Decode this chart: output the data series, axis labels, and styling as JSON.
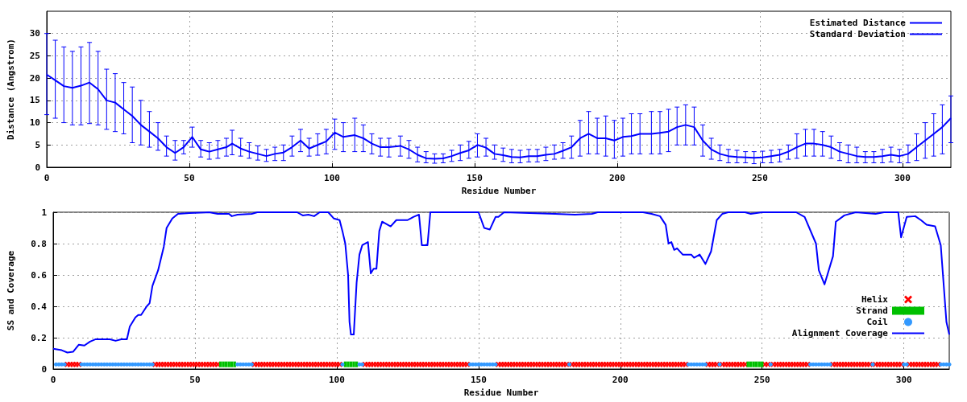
{
  "chart_data": [
    {
      "type": "line",
      "xlabel": "Residue Number",
      "ylabel": "Distance (Angstrom)",
      "xlim": [
        0,
        317
      ],
      "xticks": [
        0,
        50,
        100,
        150,
        200,
        250,
        300
      ],
      "ylim": [
        0,
        35
      ],
      "yticks": [
        0,
        5,
        10,
        15,
        20,
        25,
        30
      ],
      "grid": true,
      "legend": "top right",
      "annotations": [
        "Standard Deviation"
      ],
      "x": [
        0,
        3,
        6,
        9,
        12,
        15,
        18,
        21,
        24,
        27,
        30,
        33,
        36,
        39,
        42,
        45,
        48,
        51,
        54,
        57,
        60,
        63,
        65,
        68,
        71,
        74,
        77,
        80,
        83,
        86,
        89,
        92,
        95,
        98,
        101,
        104,
        108,
        111,
        114,
        117,
        120,
        124,
        127,
        130,
        133,
        136,
        139,
        142,
        145,
        148,
        151,
        154,
        157,
        160,
        163,
        166,
        169,
        172,
        175,
        178,
        181,
        184,
        187,
        190,
        193,
        196,
        199,
        202,
        205,
        208,
        212,
        215,
        218,
        221,
        224,
        227,
        230,
        233,
        236,
        239,
        242,
        245,
        248,
        251,
        254,
        257,
        260,
        263,
        266,
        269,
        272,
        275,
        278,
        281,
        284,
        287,
        290,
        293,
        296,
        299,
        302,
        305,
        308,
        311,
        314,
        317
      ],
      "series": [
        {
          "name": "Estimated Distance",
          "color": "#0000ff",
          "values": [
            20.8,
            19.5,
            18.2,
            17.8,
            18.3,
            19,
            17.5,
            15,
            14.5,
            13,
            11.5,
            9.5,
            8,
            6.5,
            4.5,
            3.2,
            4.5,
            6.8,
            4,
            3.5,
            4,
            4.5,
            5.3,
            4.2,
            3.5,
            3,
            2.5,
            3,
            3.3,
            4.5,
            6,
            4.2,
            5,
            5.8,
            7.8,
            6.8,
            7.2,
            6.5,
            5.3,
            4.5,
            4.5,
            4.8,
            4,
            2.8,
            2,
            1.9,
            2,
            2.5,
            3.2,
            3.8,
            5,
            4.4,
            3,
            2.7,
            2.3,
            2.2,
            2.5,
            2.5,
            2.8,
            3,
            3.7,
            4.5,
            6.5,
            7.5,
            6.5,
            6.5,
            6,
            6.8,
            7,
            7.5,
            7.5,
            7.7,
            8,
            9,
            9.5,
            9,
            6,
            4,
            3,
            2.5,
            2.3,
            2.2,
            2.1,
            2.2,
            2.5,
            2.8,
            3.5,
            4.5,
            5.3,
            5.3,
            5,
            4.5,
            3.5,
            3,
            2.5,
            2.3,
            2.3,
            2.5,
            2.8,
            2.5,
            3,
            4.5,
            6,
            7.5,
            9,
            11
          ],
          "errors": [
            [
              11.8,
              30
            ],
            [
              11,
              28.5
            ],
            [
              10,
              27
            ],
            [
              9.5,
              26
            ],
            [
              9.5,
              27
            ],
            [
              9.8,
              28
            ],
            [
              9.5,
              26
            ],
            [
              8.5,
              22
            ],
            [
              8,
              21
            ],
            [
              7.5,
              19
            ],
            [
              5.5,
              18
            ],
            [
              5,
              15
            ],
            [
              4.5,
              12.5
            ],
            [
              3.8,
              10
            ],
            [
              2.5,
              7
            ],
            [
              1.6,
              6
            ],
            [
              3,
              6
            ],
            [
              4.5,
              9
            ],
            [
              2.3,
              6
            ],
            [
              1.8,
              5.5
            ],
            [
              2,
              6
            ],
            [
              2.5,
              6.5
            ],
            [
              2.8,
              8.3
            ],
            [
              2.5,
              6.5
            ],
            [
              2,
              5.5
            ],
            [
              1.6,
              4.8
            ],
            [
              1.3,
              4
            ],
            [
              1.5,
              4.5
            ],
            [
              1.5,
              5
            ],
            [
              2.5,
              7
            ],
            [
              3.5,
              8.5
            ],
            [
              2.5,
              6.5
            ],
            [
              2.7,
              7.5
            ],
            [
              3,
              8.5
            ],
            [
              4,
              10.8
            ],
            [
              3.5,
              10
            ],
            [
              3.5,
              11
            ],
            [
              3.5,
              9.5
            ],
            [
              3,
              7.5
            ],
            [
              2.5,
              6.5
            ],
            [
              2.3,
              6.5
            ],
            [
              2.5,
              7
            ],
            [
              2,
              6
            ],
            [
              1.2,
              4.5
            ],
            [
              1,
              3.5
            ],
            [
              0.9,
              3
            ],
            [
              1,
              3
            ],
            [
              1.3,
              3.8
            ],
            [
              1.5,
              5
            ],
            [
              2,
              5.8
            ],
            [
              2.3,
              7.5
            ],
            [
              2.5,
              6.5
            ],
            [
              1.8,
              5
            ],
            [
              1.3,
              4.3
            ],
            [
              1,
              4
            ],
            [
              1,
              3.8
            ],
            [
              1.2,
              4
            ],
            [
              1.2,
              4
            ],
            [
              1.5,
              4.5
            ],
            [
              1.8,
              5
            ],
            [
              2,
              5.5
            ],
            [
              2,
              7
            ],
            [
              2.5,
              10.5
            ],
            [
              3,
              12.5
            ],
            [
              3,
              11
            ],
            [
              2.5,
              11.5
            ],
            [
              2,
              10.5
            ],
            [
              2.5,
              11
            ],
            [
              3,
              12
            ],
            [
              3,
              12
            ],
            [
              3,
              12.5
            ],
            [
              3,
              12.5
            ],
            [
              3.5,
              13
            ],
            [
              5,
              13.5
            ],
            [
              5,
              14
            ],
            [
              5,
              13.5
            ],
            [
              2.5,
              9.5
            ],
            [
              1.8,
              6.5
            ],
            [
              1.5,
              5
            ],
            [
              1,
              4
            ],
            [
              1,
              3.8
            ],
            [
              1,
              3.5
            ],
            [
              0.8,
              3.5
            ],
            [
              1,
              3.6
            ],
            [
              1,
              3.8
            ],
            [
              1.2,
              4
            ],
            [
              1.8,
              5
            ],
            [
              2,
              7.5
            ],
            [
              2.5,
              8.5
            ],
            [
              2.5,
              8.5
            ],
            [
              2.5,
              8
            ],
            [
              2,
              7
            ],
            [
              1.5,
              5.5
            ],
            [
              1,
              5
            ],
            [
              1,
              4.5
            ],
            [
              1,
              3.5
            ],
            [
              1,
              3.5
            ],
            [
              1,
              4
            ],
            [
              1.2,
              4.5
            ],
            [
              1,
              4
            ],
            [
              1,
              5
            ],
            [
              1.5,
              7.5
            ],
            [
              2,
              10
            ],
            [
              2.5,
              12
            ],
            [
              3,
              14
            ],
            [
              5.5,
              16
            ]
          ]
        }
      ]
    },
    {
      "type": "line",
      "xlabel": "Residue Number",
      "ylabel": "SS and Coverage",
      "xlim": [
        0,
        316
      ],
      "xticks": [
        0,
        50,
        100,
        150,
        200,
        250,
        300
      ],
      "ylim": [
        0,
        1
      ],
      "yticks": [
        0,
        0.2,
        0.4,
        0.6,
        0.8,
        1
      ],
      "grid": true,
      "legend": "right",
      "series": [
        {
          "name": "Helix",
          "type": "scatter",
          "marker": "cross",
          "color": "#ff0000",
          "x": [
            5,
            6,
            7,
            8,
            9,
            36,
            37,
            38,
            39,
            40,
            41,
            42,
            43,
            44,
            45,
            46,
            47,
            48,
            49,
            50,
            51,
            52,
            53,
            54,
            55,
            56,
            57,
            58,
            71,
            72,
            73,
            74,
            75,
            76,
            77,
            78,
            79,
            80,
            81,
            82,
            83,
            84,
            85,
            86,
            87,
            88,
            89,
            90,
            91,
            92,
            93,
            94,
            95,
            96,
            97,
            98,
            99,
            100,
            101,
            110,
            111,
            112,
            113,
            114,
            115,
            116,
            117,
            118,
            119,
            120,
            121,
            122,
            123,
            124,
            125,
            126,
            127,
            128,
            129,
            130,
            131,
            132,
            133,
            134,
            135,
            136,
            137,
            138,
            139,
            140,
            141,
            142,
            143,
            144,
            145,
            146,
            157,
            158,
            159,
            160,
            161,
            162,
            163,
            164,
            165,
            166,
            167,
            168,
            169,
            170,
            171,
            172,
            173,
            174,
            175,
            176,
            177,
            178,
            179,
            180,
            181,
            183,
            184,
            185,
            186,
            187,
            188,
            189,
            190,
            191,
            192,
            193,
            194,
            195,
            196,
            197,
            198,
            199,
            200,
            201,
            202,
            203,
            204,
            205,
            206,
            207,
            208,
            209,
            210,
            211,
            212,
            213,
            214,
            215,
            216,
            217,
            218,
            219,
            220,
            221,
            222,
            223,
            231,
            232,
            233,
            234,
            236,
            237,
            238,
            239,
            240,
            241,
            242,
            243,
            244,
            251,
            252,
            254,
            255,
            256,
            257,
            258,
            259,
            260,
            261,
            262,
            263,
            264,
            265,
            266,
            275,
            276,
            277,
            278,
            279,
            280,
            281,
            282,
            283,
            284,
            285,
            286,
            287,
            288,
            290,
            291,
            292,
            293,
            294,
            295,
            296,
            297,
            298,
            299,
            302,
            303,
            304,
            305,
            306,
            307,
            308,
            309,
            310,
            311,
            312
          ],
          "values": [
            0.03,
            0.03,
            0.03,
            0.03,
            0.03,
            0.03,
            0.03,
            0.03,
            0.03,
            0.03,
            0.03,
            0.03,
            0.03,
            0.03,
            0.03,
            0.03,
            0.03,
            0.03,
            0.03,
            0.03,
            0.03,
            0.03,
            0.03,
            0.03,
            0.03,
            0.03,
            0.03,
            0.03,
            0.03,
            0.03,
            0.03,
            0.03,
            0.03,
            0.03,
            0.03,
            0.03,
            0.03,
            0.03,
            0.03,
            0.03,
            0.03,
            0.03,
            0.03,
            0.03,
            0.03,
            0.03,
            0.03,
            0.03,
            0.03,
            0.03,
            0.03,
            0.03,
            0.03,
            0.03,
            0.03,
            0.03,
            0.03,
            0.03,
            0.03,
            0.03,
            0.03,
            0.03,
            0.03,
            0.03,
            0.03,
            0.03,
            0.03,
            0.03,
            0.03,
            0.03,
            0.03,
            0.03,
            0.03,
            0.03,
            0.03,
            0.03,
            0.03,
            0.03,
            0.03,
            0.03,
            0.03,
            0.03,
            0.03,
            0.03,
            0.03,
            0.03,
            0.03,
            0.03,
            0.03,
            0.03,
            0.03,
            0.03,
            0.03,
            0.03,
            0.03,
            0.03,
            0.03,
            0.03,
            0.03,
            0.03,
            0.03,
            0.03,
            0.03,
            0.03,
            0.03,
            0.03,
            0.03,
            0.03,
            0.03,
            0.03,
            0.03,
            0.03,
            0.03,
            0.03,
            0.03,
            0.03,
            0.03,
            0.03,
            0.03,
            0.03,
            0.03,
            0.03,
            0.03,
            0.03,
            0.03,
            0.03,
            0.03,
            0.03,
            0.03,
            0.03,
            0.03,
            0.03,
            0.03,
            0.03,
            0.03,
            0.03,
            0.03,
            0.03,
            0.03,
            0.03,
            0.03,
            0.03,
            0.03,
            0.03,
            0.03,
            0.03,
            0.03,
            0.03,
            0.03,
            0.03,
            0.03,
            0.03,
            0.03,
            0.03,
            0.03,
            0.03,
            0.03,
            0.03,
            0.03,
            0.03,
            0.03,
            0.03,
            0.03,
            0.03,
            0.03,
            0.03,
            0.03,
            0.03,
            0.03,
            0.03,
            0.03,
            0.03,
            0.03,
            0.03,
            0.03,
            0.03,
            0.03,
            0.03,
            0.03,
            0.03,
            0.03,
            0.03,
            0.03,
            0.03,
            0.03,
            0.03,
            0.03,
            0.03,
            0.03,
            0.03,
            0.03,
            0.03,
            0.03,
            0.03,
            0.03,
            0.03,
            0.03,
            0.03,
            0.03,
            0.03,
            0.03,
            0.03,
            0.03,
            0.03,
            0.03,
            0.03,
            0.03,
            0.03,
            0.03,
            0.03,
            0.03,
            0.03,
            0.03,
            0.03,
            0.03,
            0.03,
            0.03,
            0.03,
            0.03,
            0.03,
            0.03,
            0.03,
            0.03,
            0.03,
            0.03
          ]
        },
        {
          "name": "Strand",
          "type": "scatter",
          "marker": "square",
          "color": "#00c000",
          "x": [
            59,
            60,
            61,
            62,
            63,
            64,
            103,
            104,
            105,
            106,
            107,
            245,
            246,
            247,
            248,
            249,
            250
          ],
          "values": [
            0.03,
            0.03,
            0.03,
            0.03,
            0.03,
            0.03,
            0.03,
            0.03,
            0.03,
            0.03,
            0.03,
            0.03,
            0.03,
            0.03,
            0.03,
            0.03,
            0.03
          ]
        },
        {
          "name": "Coil",
          "type": "scatter",
          "marker": "circle",
          "color": "#3399ff",
          "x": [
            1,
            2,
            3,
            4,
            10,
            11,
            12,
            13,
            14,
            15,
            16,
            17,
            18,
            19,
            20,
            21,
            22,
            23,
            24,
            25,
            26,
            27,
            28,
            29,
            30,
            31,
            32,
            33,
            34,
            35,
            65,
            66,
            67,
            68,
            69,
            70,
            102,
            108,
            109,
            147,
            148,
            149,
            150,
            151,
            152,
            153,
            154,
            155,
            156,
            182,
            224,
            225,
            226,
            227,
            228,
            229,
            230,
            235,
            253,
            267,
            268,
            269,
            270,
            271,
            272,
            273,
            274,
            289,
            300,
            301,
            313,
            314,
            315,
            316
          ],
          "values": [
            0.03,
            0.03,
            0.03,
            0.03,
            0.03,
            0.03,
            0.03,
            0.03,
            0.03,
            0.03,
            0.03,
            0.03,
            0.03,
            0.03,
            0.03,
            0.03,
            0.03,
            0.03,
            0.03,
            0.03,
            0.03,
            0.03,
            0.03,
            0.03,
            0.03,
            0.03,
            0.03,
            0.03,
            0.03,
            0.03,
            0.03,
            0.03,
            0.03,
            0.03,
            0.03,
            0.03,
            0.03,
            0.03,
            0.03,
            0.03,
            0.03,
            0.03,
            0.03,
            0.03,
            0.03,
            0.03,
            0.03,
            0.03,
            0.03,
            0.03,
            0.03,
            0.03,
            0.03,
            0.03,
            0.03,
            0.03,
            0.03,
            0.03,
            0.03,
            0.03,
            0.03,
            0.03,
            0.03,
            0.03,
            0.03,
            0.03,
            0.03,
            0.03,
            0.03,
            0.03,
            0.03,
            0.03,
            0.03,
            0.03
          ]
        },
        {
          "name": "Alignment Coverage",
          "color": "#0000ff",
          "x": [
            0,
            3,
            5,
            7,
            9,
            11,
            13,
            15,
            20,
            22,
            24,
            26,
            27,
            29,
            30,
            31,
            33,
            34,
            35,
            37,
            39,
            40,
            42,
            44,
            48,
            55,
            58,
            62,
            63,
            65,
            70,
            72,
            86,
            88,
            90,
            92,
            94,
            97,
            99,
            101,
            102,
            103,
            104,
            104.5,
            105,
            106,
            107,
            108,
            109,
            111,
            112,
            113,
            114,
            115,
            116,
            119,
            121,
            125,
            127,
            129,
            130,
            132,
            133,
            150,
            152,
            154,
            156,
            157,
            159,
            177,
            184,
            190,
            192,
            208,
            211,
            214,
            216,
            217,
            218,
            219,
            220,
            222,
            225,
            226,
            228,
            230,
            232,
            234,
            236,
            238,
            244,
            246,
            250,
            262,
            265,
            269,
            270,
            272,
            275,
            276,
            279,
            283,
            290,
            293,
            298,
            299,
            301,
            304,
            306,
            308,
            311,
            313,
            315,
            316
          ],
          "values": [
            0.13,
            0.12,
            0.105,
            0.11,
            0.155,
            0.15,
            0.175,
            0.19,
            0.19,
            0.18,
            0.19,
            0.19,
            0.27,
            0.33,
            0.345,
            0.345,
            0.4,
            0.42,
            0.53,
            0.63,
            0.78,
            0.9,
            0.96,
            0.99,
            0.995,
            1,
            0.99,
            0.99,
            0.975,
            0.985,
            0.99,
            1,
            1,
            0.98,
            0.985,
            0.975,
            1,
            1,
            0.96,
            0.95,
            0.88,
            0.8,
            0.6,
            0.3,
            0.22,
            0.22,
            0.55,
            0.73,
            0.79,
            0.81,
            0.61,
            0.64,
            0.64,
            0.88,
            0.94,
            0.91,
            0.95,
            0.95,
            0.97,
            0.985,
            0.79,
            0.79,
            1,
            1,
            0.9,
            0.89,
            0.97,
            0.97,
            1,
            0.99,
            0.985,
            0.99,
            1,
            1,
            0.99,
            0.975,
            0.92,
            0.8,
            0.81,
            0.76,
            0.77,
            0.73,
            0.73,
            0.71,
            0.73,
            0.67,
            0.75,
            0.95,
            0.99,
            1,
            1,
            0.99,
            1,
            1,
            0.97,
            0.8,
            0.63,
            0.54,
            0.72,
            0.94,
            0.98,
            1,
            0.99,
            1,
            1,
            0.84,
            0.97,
            0.975,
            0.95,
            0.92,
            0.91,
            0.79,
            0.3,
            0.22
          ]
        }
      ]
    }
  ]
}
